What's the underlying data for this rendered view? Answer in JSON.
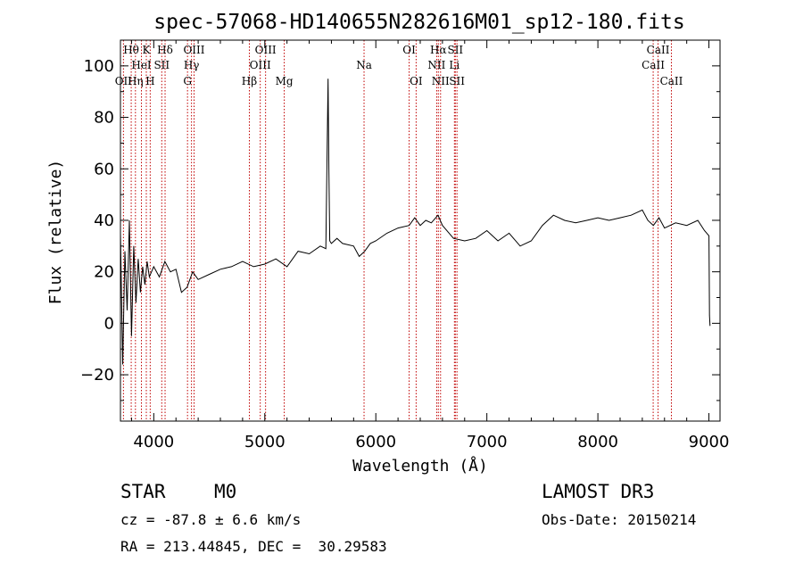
{
  "chart_data": {
    "type": "line",
    "title": "spec-57068-HD140655N282616M01_sp12-180.fits",
    "xlabel": "Wavelength (Å)",
    "ylabel": "Flux (relative)",
    "xlim": [
      3700,
      9100
    ],
    "ylim": [
      -38,
      110
    ],
    "xticks": [
      4000,
      5000,
      6000,
      7000,
      8000,
      9000
    ],
    "yticks": [
      -20,
      0,
      20,
      40,
      60,
      80,
      100
    ],
    "series": [
      {
        "name": "flux",
        "x": [
          3700,
          3720,
          3740,
          3760,
          3780,
          3800,
          3820,
          3840,
          3860,
          3880,
          3900,
          3920,
          3940,
          3960,
          3980,
          4000,
          4050,
          4100,
          4150,
          4200,
          4250,
          4300,
          4350,
          4400,
          4500,
          4600,
          4700,
          4800,
          4900,
          5000,
          5100,
          5200,
          5300,
          5400,
          5500,
          5550,
          5570,
          5577,
          5585,
          5600,
          5650,
          5700,
          5800,
          5850,
          5900,
          5950,
          6000,
          6100,
          6200,
          6300,
          6350,
          6400,
          6450,
          6500,
          6560,
          6600,
          6700,
          6800,
          6900,
          7000,
          7100,
          7200,
          7300,
          7400,
          7500,
          7600,
          7700,
          7800,
          7900,
          8000,
          8100,
          8200,
          8300,
          8400,
          8450,
          8500,
          8550,
          8600,
          8700,
          8800,
          8900,
          8960,
          9000,
          9005,
          9010
        ],
        "y": [
          35,
          -16,
          28,
          5,
          40,
          -5,
          30,
          8,
          25,
          12,
          22,
          15,
          24,
          18,
          20,
          22,
          18,
          24,
          20,
          21,
          12,
          14,
          20,
          17,
          19,
          21,
          22,
          24,
          22,
          23,
          25,
          22,
          28,
          27,
          30,
          29,
          95,
          60,
          32,
          31,
          33,
          31,
          30,
          26,
          28,
          31,
          32,
          35,
          37,
          38,
          41,
          38,
          40,
          39,
          42,
          38,
          33,
          32,
          33,
          36,
          32,
          35,
          30,
          32,
          38,
          42,
          40,
          39,
          40,
          41,
          40,
          41,
          42,
          44,
          40,
          38,
          41,
          37,
          39,
          38,
          40,
          36,
          34,
          3,
          -1
        ]
      }
    ],
    "line_labels": [
      {
        "text": "OII",
        "wavelength": 3727,
        "row": 3
      },
      {
        "text": "Hθ",
        "wavelength": 3797,
        "row": 1
      },
      {
        "text": "Hη",
        "wavelength": 3835,
        "row": 3
      },
      {
        "text": "HeI",
        "wavelength": 3889,
        "row": 2
      },
      {
        "text": "K",
        "wavelength": 3933,
        "row": 1
      },
      {
        "text": "H",
        "wavelength": 3968,
        "row": 3
      },
      {
        "text": "SII",
        "wavelength": 4072,
        "row": 2
      },
      {
        "text": "Hδ",
        "wavelength": 4102,
        "row": 1
      },
      {
        "text": "G",
        "wavelength": 4304,
        "row": 3
      },
      {
        "text": "Hγ",
        "wavelength": 4340,
        "row": 2
      },
      {
        "text": "OIII",
        "wavelength": 4363,
        "row": 1
      },
      {
        "text": "Hβ",
        "wavelength": 4861,
        "row": 3
      },
      {
        "text": "OIII",
        "wavelength": 4959,
        "row": 2
      },
      {
        "text": "OIII",
        "wavelength": 5007,
        "row": 1
      },
      {
        "text": "Mg",
        "wavelength": 5175,
        "row": 3
      },
      {
        "text": "Na",
        "wavelength": 5894,
        "row": 2
      },
      {
        "text": "OI",
        "wavelength": 6300,
        "row": 1
      },
      {
        "text": "OI",
        "wavelength": 6363,
        "row": 3
      },
      {
        "text": "NII",
        "wavelength": 6548,
        "row": 2
      },
      {
        "text": "Hα",
        "wavelength": 6563,
        "row": 1
      },
      {
        "text": "NII",
        "wavelength": 6583,
        "row": 3
      },
      {
        "text": "Li",
        "wavelength": 6708,
        "row": 2
      },
      {
        "text": "SII",
        "wavelength": 6716,
        "row": 1
      },
      {
        "text": "SII",
        "wavelength": 6731,
        "row": 3
      },
      {
        "text": "CaII",
        "wavelength": 8498,
        "row": 2
      },
      {
        "text": "CaII",
        "wavelength": 8542,
        "row": 1
      },
      {
        "text": "CaII",
        "wavelength": 8662,
        "row": 3
      }
    ]
  },
  "info": {
    "object_class": "STAR",
    "subclass": "M0",
    "survey": "LAMOST DR3",
    "cz": "cz = -87.8 ± 6.6 km/s",
    "obs_date": "Obs-Date: 20150214",
    "coords": "RA = 213.44845, DEC =  30.29583"
  },
  "colors": {
    "line_marker": "#c00000",
    "spectrum": "#000000",
    "background": "#ffffff"
  }
}
